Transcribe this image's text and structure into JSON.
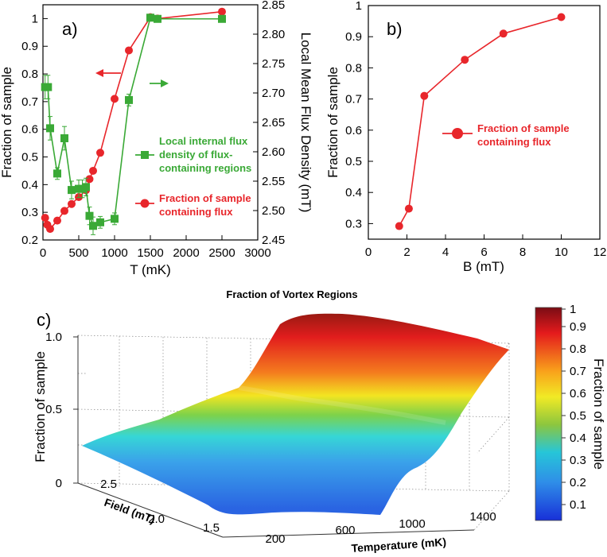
{
  "chart_data": [
    {
      "panel_label": "a)",
      "type": "line",
      "x": {
        "label": "T (mK)",
        "lim": [
          0,
          3000
        ],
        "ticks": [
          0,
          500,
          1000,
          1500,
          2000,
          2500,
          3000
        ]
      },
      "y_left": {
        "label": "Fraction of sample",
        "lim": [
          0.2,
          1.05
        ],
        "ticks": [
          0.2,
          0.3,
          0.4,
          0.5,
          0.6,
          0.7,
          0.8,
          0.9,
          1
        ]
      },
      "y_right": {
        "label": "Local Mean Flux Density (mT)",
        "lim": [
          2.45,
          2.85
        ],
        "ticks": [
          2.45,
          2.5,
          2.55,
          2.6,
          2.65,
          2.7,
          2.75,
          2.8,
          2.85
        ]
      },
      "series": [
        {
          "name": "Fraction of sample containing flux",
          "legend": [
            "Fraction of sample",
            "containing flux"
          ],
          "axis": "left",
          "color": "#e8262b",
          "marker": "circle",
          "x": [
            30,
            60,
            100,
            200,
            300,
            400,
            500,
            600,
            650,
            700,
            800,
            1000,
            1200,
            1500,
            1600,
            2500
          ],
          "y": [
            0.28,
            0.255,
            0.24,
            0.27,
            0.305,
            0.33,
            0.355,
            0.38,
            0.42,
            0.45,
            0.515,
            0.71,
            0.885,
            1.005,
            1.0,
            1.025
          ]
        },
        {
          "name": "Local internal flux density of flux-containing regions",
          "legend": [
            "Local internal flux",
            "density of flux-",
            "containing regions"
          ],
          "axis": "right",
          "color": "#3aa936",
          "marker": "square",
          "x": [
            30,
            70,
            100,
            200,
            300,
            400,
            500,
            550,
            600,
            650,
            700,
            800,
            1000,
            1200,
            1500,
            1600,
            2500
          ],
          "y": [
            2.71,
            2.71,
            2.64,
            2.563,
            2.623,
            2.535,
            2.537,
            2.537,
            2.54,
            2.491,
            2.474,
            2.48,
            2.486,
            2.688,
            2.828,
            2.826,
            2.826
          ],
          "yerr": [
            0.02,
            0.02,
            0.02,
            0.01,
            0.02,
            0.015,
            0.015,
            0.015,
            0.015,
            0.015,
            0.015,
            0.01,
            0.01,
            0.01,
            0.005,
            0.005,
            0.005
          ]
        }
      ]
    },
    {
      "panel_label": "b)",
      "type": "line",
      "x": {
        "label": "B (mT)",
        "lim": [
          0,
          12
        ],
        "ticks": [
          0,
          2,
          4,
          6,
          8,
          10,
          12
        ]
      },
      "y": {
        "label": "Fraction of sample",
        "lim": [
          0.25,
          1.0
        ],
        "ticks": [
          0.3,
          0.4,
          0.5,
          0.6,
          0.7,
          0.8,
          0.9,
          1
        ]
      },
      "series": [
        {
          "name": "Fraction of sample containing flux",
          "legend": [
            "Fraction of sample",
            "containing flux"
          ],
          "color": "#e8262b",
          "marker": "circle",
          "x": [
            1.6,
            2.1,
            2.9,
            5.0,
            7.0,
            10.0
          ],
          "y": [
            0.292,
            0.348,
            0.71,
            0.826,
            0.91,
            0.963
          ]
        }
      ]
    },
    {
      "panel_label": "c)",
      "type": "surface",
      "title": "Fraction of Vortex Regions",
      "z_label": "Fraction of sample",
      "z_ticks": [
        "0",
        "0.5",
        "1.0"
      ],
      "x_label": "Temperature (mK)",
      "x_ticks": [
        "200",
        "600",
        "1000",
        "1400"
      ],
      "y_label": "Field (mT)",
      "y_ticks": [
        "1.5",
        "2.0",
        "2.5"
      ],
      "colorbar_label": "Fraction of sample",
      "colorbar_ticks": [
        "1",
        "0.9",
        "0.8",
        "0.7",
        "0.6",
        "0.5",
        "0.4",
        "0.3",
        "0.2",
        "0.1"
      ]
    }
  ]
}
